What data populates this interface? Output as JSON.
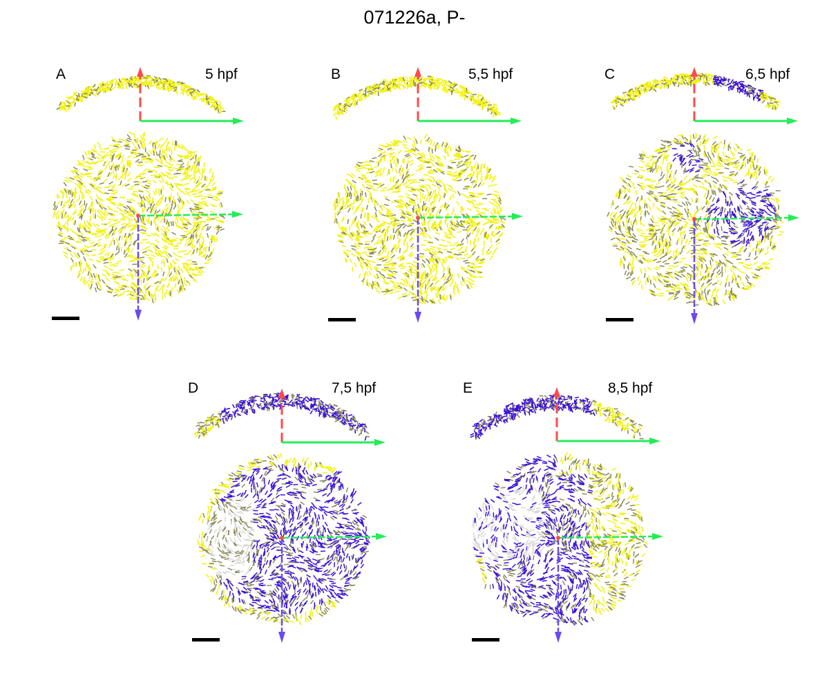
{
  "figure": {
    "title": "071226a, P-",
    "colors": {
      "yellow": "#f2f20a",
      "gray": "#8a8a5c",
      "blue": "#3a10d8",
      "lightgray": "#d8d8d8",
      "axis_red": "#ff4a4a",
      "axis_green": "#22ee55",
      "axis_blue": "#6a4af0"
    },
    "panels": [
      {
        "letter": "A",
        "stage": "5 hpf",
        "pattern": "yellow"
      },
      {
        "letter": "B",
        "stage": "5,5 hpf",
        "pattern": "yellow"
      },
      {
        "letter": "C",
        "stage": "6,5 hpf",
        "pattern": "mixed"
      },
      {
        "letter": "D",
        "stage": "7,5 hpf",
        "pattern": "blue"
      },
      {
        "letter": "E",
        "stage": "8,5 hpf",
        "pattern": "blueyellow"
      }
    ]
  }
}
